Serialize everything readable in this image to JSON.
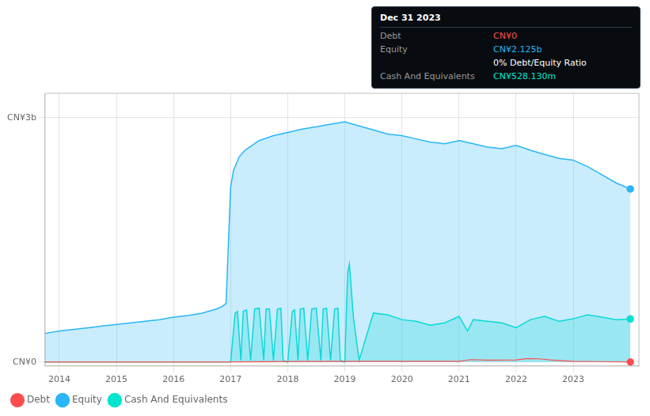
{
  "chart_data": {
    "type": "line",
    "series": [
      {
        "name": "Debt",
        "type": "line",
        "color": "#ff4d4d",
        "x": [
          2013.75,
          2016.75,
          2017.0,
          2018.0,
          2019.0,
          2020.0,
          2021.0,
          2021.2,
          2021.5,
          2022.0,
          2022.2,
          2022.4,
          2022.6,
          2023.0,
          2023.5,
          2024.0
        ],
        "values": [
          0.0,
          0.0,
          0.0,
          0.005,
          0.008,
          0.008,
          0.008,
          0.028,
          0.022,
          0.025,
          0.042,
          0.038,
          0.025,
          0.008,
          0.004,
          0.0
        ]
      },
      {
        "name": "Equity",
        "type": "area",
        "color": "#29b6f6",
        "x": [
          2013.75,
          2014.0,
          2014.25,
          2014.5,
          2014.75,
          2015.0,
          2015.25,
          2015.5,
          2015.75,
          2016.0,
          2016.25,
          2016.5,
          2016.75,
          2016.85,
          2016.92,
          2017.0,
          2017.05,
          2017.15,
          2017.25,
          2017.5,
          2017.75,
          2018.0,
          2018.25,
          2018.5,
          2018.75,
          2019.0,
          2019.25,
          2019.5,
          2019.75,
          2020.0,
          2020.25,
          2020.5,
          2020.75,
          2021.0,
          2021.25,
          2021.5,
          2021.75,
          2022.0,
          2022.25,
          2022.5,
          2022.75,
          2023.0,
          2023.25,
          2023.5,
          2023.75,
          2024.0
        ],
        "values": [
          0.35,
          0.38,
          0.4,
          0.42,
          0.44,
          0.46,
          0.48,
          0.5,
          0.52,
          0.55,
          0.57,
          0.6,
          0.65,
          0.68,
          0.72,
          2.15,
          2.35,
          2.52,
          2.6,
          2.72,
          2.78,
          2.82,
          2.86,
          2.89,
          2.92,
          2.95,
          2.9,
          2.85,
          2.8,
          2.78,
          2.74,
          2.7,
          2.68,
          2.72,
          2.68,
          2.64,
          2.62,
          2.66,
          2.6,
          2.55,
          2.5,
          2.48,
          2.4,
          2.3,
          2.2,
          2.125
        ]
      },
      {
        "name": "Cash And Equivalents",
        "type": "area",
        "color": "#00e5cc",
        "x": [
          2013.75,
          2014.0,
          2014.5,
          2015.0,
          2015.5,
          2016.0,
          2016.5,
          2016.75,
          2016.9,
          2017.0,
          2017.08,
          2017.12,
          2017.18,
          2017.22,
          2017.28,
          2017.35,
          2017.42,
          2017.5,
          2017.58,
          2017.62,
          2017.68,
          2017.75,
          2017.82,
          2017.88,
          2017.92,
          2017.98,
          2018.0,
          2018.08,
          2018.12,
          2018.18,
          2018.22,
          2018.28,
          2018.35,
          2018.42,
          2018.5,
          2018.58,
          2018.62,
          2018.68,
          2018.75,
          2018.82,
          2018.88,
          2018.92,
          2018.98,
          2019.0,
          2019.05,
          2019.08,
          2019.15,
          2019.25,
          2019.5,
          2019.75,
          2020.0,
          2020.25,
          2020.5,
          2020.75,
          2021.0,
          2021.15,
          2021.25,
          2021.5,
          2021.75,
          2022.0,
          2022.25,
          2022.5,
          2022.75,
          2023.0,
          2023.25,
          2023.5,
          2023.75,
          2024.0
        ],
        "values": [
          0.0,
          0.0,
          0.0,
          0.0,
          0.0,
          0.0,
          0.0,
          0.0,
          0.0,
          0.0,
          0.6,
          0.62,
          0.02,
          0.62,
          0.64,
          0.02,
          0.65,
          0.66,
          0.02,
          0.65,
          0.65,
          0.02,
          0.65,
          0.66,
          0.02,
          0.0,
          0.0,
          0.62,
          0.64,
          0.02,
          0.65,
          0.66,
          0.02,
          0.65,
          0.66,
          0.02,
          0.65,
          0.66,
          0.02,
          0.65,
          0.66,
          0.02,
          0.0,
          0.0,
          1.1,
          1.2,
          0.55,
          0.02,
          0.6,
          0.58,
          0.52,
          0.5,
          0.45,
          0.48,
          0.56,
          0.38,
          0.52,
          0.5,
          0.48,
          0.42,
          0.52,
          0.56,
          0.5,
          0.53,
          0.58,
          0.55,
          0.52,
          0.528
        ]
      }
    ],
    "xlim": [
      2013.75,
      2024.15
    ],
    "xticks": [
      2014,
      2015,
      2016,
      2017,
      2018,
      2019,
      2020,
      2021,
      2022,
      2023
    ],
    "ylim": [
      -0.05,
      3.3
    ],
    "yticks": [
      {
        "value": 0,
        "label": "CN¥0"
      },
      {
        "value": 3,
        "label": "CN¥3b"
      }
    ],
    "grid": true,
    "legend": "bottom",
    "annotations": [
      [
        {
          "text": "Dec 31 2023",
          "color": "#ffffff"
        }
      ],
      [
        {
          "text": "Debt",
          "color": "#999999"
        },
        {
          "text": "CN¥0",
          "color": "#ff4d4d"
        }
      ],
      [
        {
          "text": "Equity",
          "color": "#999999"
        },
        {
          "text": "CN¥2.125b",
          "color": "#29b6f6"
        }
      ],
      [
        {
          "text": "0% Debt/Equity Ratio",
          "color": "#ffffff"
        }
      ],
      [
        {
          "text": "Cash And Equivalents",
          "color": "#999999"
        },
        {
          "text": "CN¥528.130m",
          "color": "#00e5cc"
        }
      ]
    ]
  }
}
